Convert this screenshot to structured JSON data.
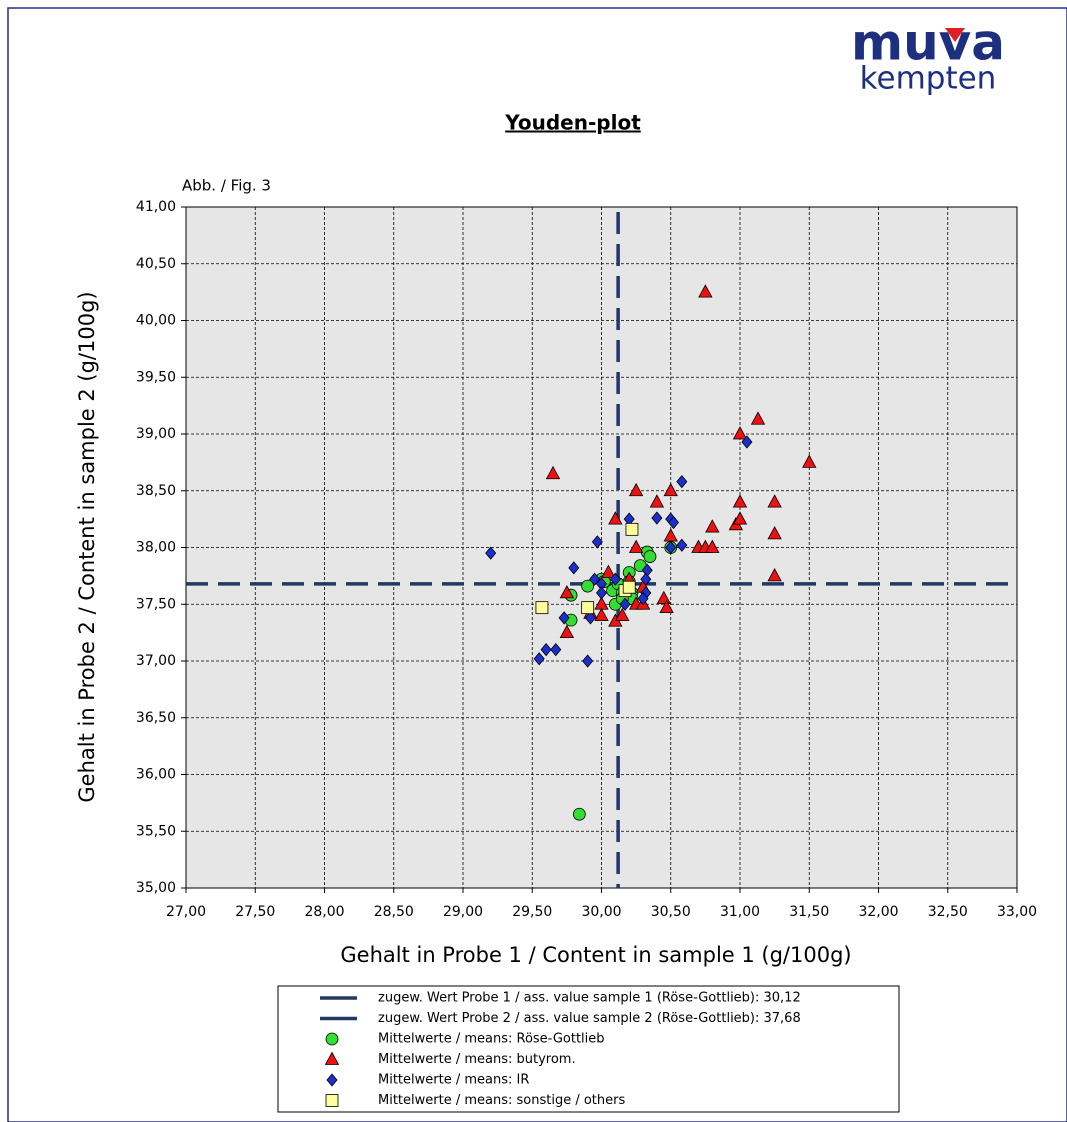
{
  "chart_data": {
    "type": "scatter",
    "logo_text": "muva",
    "logo_subtext": "kempten",
    "title": "Youden-plot",
    "figure_label": "Abb. / Fig. 3",
    "x_label": "Gehalt in Probe 1 / Content in sample 1 (g/100g)",
    "y_label": "Gehalt in Probe 2 / Content in sample 2 (g/100g)",
    "xlim": [
      27,
      33
    ],
    "ylim": [
      35,
      41
    ],
    "xticks": [
      {
        "value": 27,
        "label": "27,00"
      },
      {
        "value": 27.5,
        "label": "27,50"
      },
      {
        "value": 28,
        "label": "28,00"
      },
      {
        "value": 28.5,
        "label": "28,50"
      },
      {
        "value": 29,
        "label": "29,00"
      },
      {
        "value": 29.5,
        "label": "29,50"
      },
      {
        "value": 30,
        "label": "30,00"
      },
      {
        "value": 30.5,
        "label": "30,50"
      },
      {
        "value": 31,
        "label": "31,00"
      },
      {
        "value": 31.5,
        "label": "31,50"
      },
      {
        "value": 32,
        "label": "32,00"
      },
      {
        "value": 32.5,
        "label": "32,50"
      },
      {
        "value": 33,
        "label": "33,00"
      }
    ],
    "yticks": [
      {
        "value": 35,
        "label": "35,00"
      },
      {
        "value": 35.5,
        "label": "35,50"
      },
      {
        "value": 36,
        "label": "36,00"
      },
      {
        "value": 36.5,
        "label": "36,50"
      },
      {
        "value": 37,
        "label": "37,00"
      },
      {
        "value": 37.5,
        "label": "37,50"
      },
      {
        "value": 38,
        "label": "38,00"
      },
      {
        "value": 38.5,
        "label": "38,50"
      },
      {
        "value": 39,
        "label": "39,00"
      },
      {
        "value": 39.5,
        "label": "39,50"
      },
      {
        "value": 40,
        "label": "40,00"
      },
      {
        "value": 40.5,
        "label": "40,50"
      },
      {
        "value": 41,
        "label": "41,00"
      }
    ],
    "grid": true,
    "reference_lines": [
      {
        "name": "zugew. Wert Probe 1 / ass. value sample 1 (Röse-Gottlieb): 30,12",
        "axis": "x",
        "value": 30.12,
        "color": "#1f3864"
      },
      {
        "name": "zugew. Wert Probe 2 / ass. value sample 2 (Röse-Gottlieb): 37,68",
        "axis": "y",
        "value": 37.68,
        "color": "#1f3864"
      }
    ],
    "series": [
      {
        "name": "Mittelwerte / means: Röse-Gottlieb",
        "color": "#33dd33",
        "marker": "circle",
        "x": [
          29.84,
          29.78,
          29.78,
          29.9,
          30.0,
          30.02,
          30.08,
          30.1,
          30.12,
          30.15,
          30.2,
          30.22,
          30.22,
          30.28,
          30.33,
          30.35,
          30.5,
          30.2,
          30.15
        ],
        "y": [
          35.65,
          37.36,
          37.58,
          37.66,
          37.72,
          37.7,
          37.62,
          37.5,
          37.68,
          37.6,
          37.78,
          37.6,
          37.55,
          37.84,
          37.96,
          37.92,
          38.0,
          37.7,
          37.55
        ]
      },
      {
        "name": "Mittelwerte / means: butyrom.",
        "color": "#ee1111",
        "marker": "triangle",
        "x": [
          30.75,
          31.13,
          31.0,
          31.5,
          29.65,
          30.25,
          30.5,
          30.4,
          31.0,
          31.25,
          30.1,
          30.5,
          30.97,
          30.8,
          31.0,
          31.25,
          30.7,
          30.75,
          30.8,
          30.25,
          31.25,
          30.05,
          29.75,
          30.0,
          30.0,
          29.92,
          30.1,
          30.15,
          29.75,
          30.25,
          30.3,
          30.45,
          30.47,
          30.2,
          30.3
        ],
        "y": [
          40.25,
          39.13,
          39.0,
          38.75,
          38.65,
          38.5,
          38.5,
          38.4,
          38.4,
          38.4,
          38.25,
          38.1,
          38.2,
          38.18,
          38.25,
          38.12,
          38.0,
          38.0,
          38.0,
          38.0,
          37.75,
          37.78,
          37.6,
          37.5,
          37.4,
          37.42,
          37.35,
          37.4,
          37.25,
          37.5,
          37.5,
          37.55,
          37.47,
          37.72,
          37.65
        ]
      },
      {
        "name": "Mittelwerte / means: IR",
        "color": "#1a2fcc",
        "marker": "diamond",
        "x": [
          31.05,
          30.58,
          30.5,
          30.2,
          30.4,
          30.52,
          29.2,
          29.97,
          30.58,
          30.5,
          29.8,
          30.33,
          30.0,
          29.95,
          30.1,
          30.32,
          30.3,
          30.17,
          29.73,
          29.92,
          29.6,
          29.55,
          29.67,
          29.9,
          30.0,
          30.32
        ],
        "y": [
          38.93,
          38.58,
          38.25,
          38.25,
          38.26,
          38.22,
          37.95,
          38.05,
          38.02,
          38.0,
          37.82,
          37.8,
          37.68,
          37.72,
          37.72,
          37.6,
          37.55,
          37.5,
          37.38,
          37.38,
          37.1,
          37.02,
          37.1,
          37.0,
          37.6,
          37.72
        ]
      },
      {
        "name": "Mittelwerte / means: sonstige / others",
        "color": "#ffff99",
        "marker": "square",
        "x": [
          30.22,
          29.57,
          29.9,
          30.17,
          30.2
        ],
        "y": [
          38.16,
          37.47,
          37.47,
          37.62,
          37.65
        ]
      }
    ]
  }
}
